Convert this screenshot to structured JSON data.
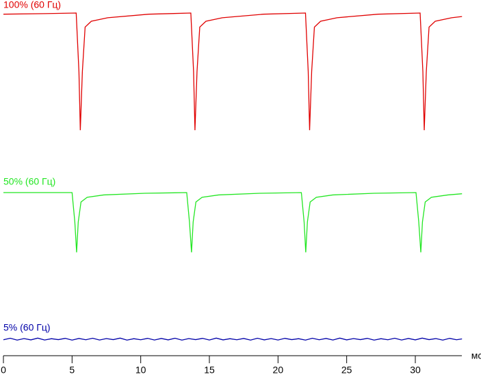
{
  "chart_data": {
    "type": "line",
    "x_label": "мс",
    "xlim": [
      0,
      33.4
    ],
    "xticks": [
      0,
      5,
      10,
      15,
      20,
      25,
      30
    ],
    "ylim": [
      0,
      100
    ],
    "series": [
      {
        "name": "100% (60 Гц)",
        "color": "#e00000",
        "x": [
          0,
          3,
          5.3,
          5.5,
          5.6,
          5.75,
          5.95,
          6.4,
          7.6,
          10.6,
          13.65,
          13.85,
          13.95,
          14.1,
          14.3,
          14.75,
          15.95,
          18.95,
          22.0,
          22.2,
          22.3,
          22.45,
          22.65,
          23.1,
          24.3,
          27.3,
          30.35,
          30.55,
          30.65,
          30.8,
          31.0,
          31.45,
          32.65,
          33.4
        ],
        "values": [
          99,
          99.5,
          100,
          50,
          0,
          50,
          88,
          93,
          96,
          99,
          100,
          50,
          0,
          50,
          88,
          93,
          96,
          99,
          100,
          50,
          0,
          50,
          88,
          93,
          96,
          99,
          100,
          50,
          0,
          50,
          88,
          93,
          96,
          97
        ]
      },
      {
        "name": "50% (60 Гц)",
        "color": "#22e622",
        "x": [
          0,
          3,
          5.0,
          5.2,
          5.33,
          5.45,
          5.65,
          6.1,
          7.3,
          10.3,
          13.35,
          13.55,
          13.7,
          13.82,
          14.02,
          14.47,
          15.67,
          18.67,
          21.7,
          21.9,
          22.02,
          22.14,
          22.34,
          22.79,
          23.99,
          26.99,
          30.05,
          30.25,
          30.4,
          30.52,
          30.72,
          31.17,
          32.37,
          33.4
        ],
        "values": [
          100,
          100,
          100,
          75,
          49,
          75,
          92,
          96,
          98,
          99.4,
          100,
          75,
          49,
          75,
          92,
          96,
          98,
          99.4,
          100,
          75,
          49,
          75,
          92,
          96,
          98,
          99.4,
          100,
          75,
          49,
          75,
          92,
          96,
          98,
          99
        ]
      },
      {
        "name": "5% (60 Гц)",
        "color": "#0000a8",
        "x": [
          0,
          0.5,
          1,
          1.5,
          2,
          2.5,
          3,
          3.5,
          4,
          4.5,
          5,
          5.5,
          6,
          6.5,
          7,
          7.5,
          8,
          8.5,
          9,
          9.5,
          10,
          10.5,
          11,
          11.5,
          12,
          12.5,
          13,
          13.5,
          14,
          14.5,
          15,
          15.5,
          16,
          16.5,
          17,
          17.5,
          18,
          18.5,
          19,
          19.5,
          20,
          20.5,
          21,
          21.5,
          22,
          22.5,
          23,
          23.5,
          24,
          24.5,
          25,
          25.5,
          26,
          26.5,
          27,
          27.5,
          28,
          28.5,
          29,
          29.5,
          30,
          30.5,
          31,
          31.5,
          32,
          32.5,
          33,
          33.4
        ],
        "values": [
          71.5,
          72.8,
          71.2,
          72.5,
          71.4,
          72.9,
          71.3,
          72.4,
          71.6,
          72.7,
          71.2,
          72.6,
          71.5,
          72.8,
          71.3,
          72.5,
          71.6,
          72.9,
          71.2,
          72.4,
          71.5,
          72.7,
          71.3,
          72.6,
          71.4,
          72.8,
          71.2,
          72.5,
          71.6,
          72.7,
          71.3,
          72.9,
          71.4,
          72.4,
          71.5,
          72.6,
          71.2,
          72.8,
          71.4,
          72.5,
          71.3,
          72.7,
          71.6,
          72.4,
          71.2,
          72.8,
          71.5,
          72.6,
          71.3,
          72.9,
          71.4,
          72.5,
          71.6,
          72.7,
          71.2,
          72.4,
          71.5,
          72.8,
          71.3,
          72.6,
          71.4,
          72.9,
          71.6,
          72.5,
          71.2,
          72.7,
          71.5,
          72.2
        ]
      }
    ]
  }
}
